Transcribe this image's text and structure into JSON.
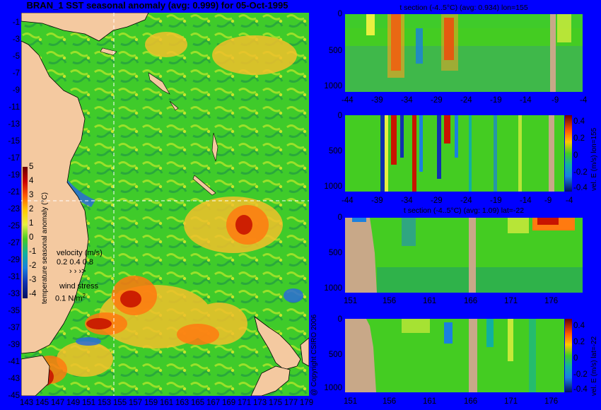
{
  "main_title": "BRAN_1 SST seasonal anomaly (avg: 0.999) for 05-Oct-1995",
  "copyright": "@ Copyright CSIRO 2006",
  "map": {
    "lat_labels": [
      "-1",
      "-3",
      "-5",
      "-7",
      "-9",
      "-11",
      "-13",
      "-15",
      "-17",
      "-19",
      "-21",
      "-23",
      "-25",
      "-27",
      "-29",
      "-31",
      "-33",
      "-35",
      "-37",
      "-39",
      "-41",
      "-43",
      "-45"
    ],
    "lon_labels": [
      "143",
      "145",
      "147",
      "149",
      "151",
      "153",
      "155",
      "157",
      "159",
      "161",
      "163",
      "165",
      "167",
      "169",
      "171",
      "173",
      "175",
      "177",
      "179"
    ],
    "colorbar": {
      "label": "temperature seasonal anomaly (°C)",
      "ticks": [
        "5",
        "4",
        "3",
        "2",
        "1",
        "0",
        "-1",
        "-2",
        "-3",
        "-4"
      ]
    },
    "velocity_label": "velocity (m/s)",
    "velocity_values": "0.2 0.4 0.8",
    "wind_label": "wind stress",
    "wind_value": "0.1 N/m",
    "wind_sup": "2"
  },
  "panels": [
    {
      "title": "t section (-4..5°C) (avg: 0.934) lon=155",
      "y_ticks": [
        "0",
        "500",
        "1000"
      ],
      "x_ticks": [
        "-44",
        "-39",
        "-34",
        "-29",
        "-24",
        "-19",
        "-14",
        "-9",
        "-4"
      ]
    },
    {
      "title": "",
      "y_ticks": [
        "0",
        "500",
        "1000"
      ],
      "x_ticks": [
        "-44",
        "-39",
        "-34",
        "-29",
        "-24",
        "-19",
        "-14",
        "-9",
        "-4"
      ],
      "cbar_label": "vel. E (m/s) lon=155",
      "cbar_ticks": [
        "0.4",
        "0.2",
        "0",
        "-0.2",
        "-0.4"
      ]
    },
    {
      "title": "t section (-4..5°C) (avg: 1.09) lat=-22",
      "y_ticks": [
        "0",
        "500",
        "1000"
      ],
      "x_ticks": [
        "151",
        "156",
        "161",
        "166",
        "171",
        "176"
      ]
    },
    {
      "title": "",
      "y_ticks": [
        "0",
        "500",
        "1000"
      ],
      "x_ticks": [
        "151",
        "156",
        "161",
        "166",
        "171",
        "176"
      ],
      "cbar_label": "vel. E (m/s) lat=-22",
      "cbar_ticks": [
        "0.4",
        "0.2",
        "0",
        "-0.2",
        "-0.4"
      ]
    }
  ],
  "colors": {
    "background": "#0000ff",
    "land": "#f4c9a0",
    "section_land": "#c8a888",
    "anomaly_green": "#44cc22",
    "warm_red": "#cc1100",
    "cold_blue": "#0022aa"
  }
}
